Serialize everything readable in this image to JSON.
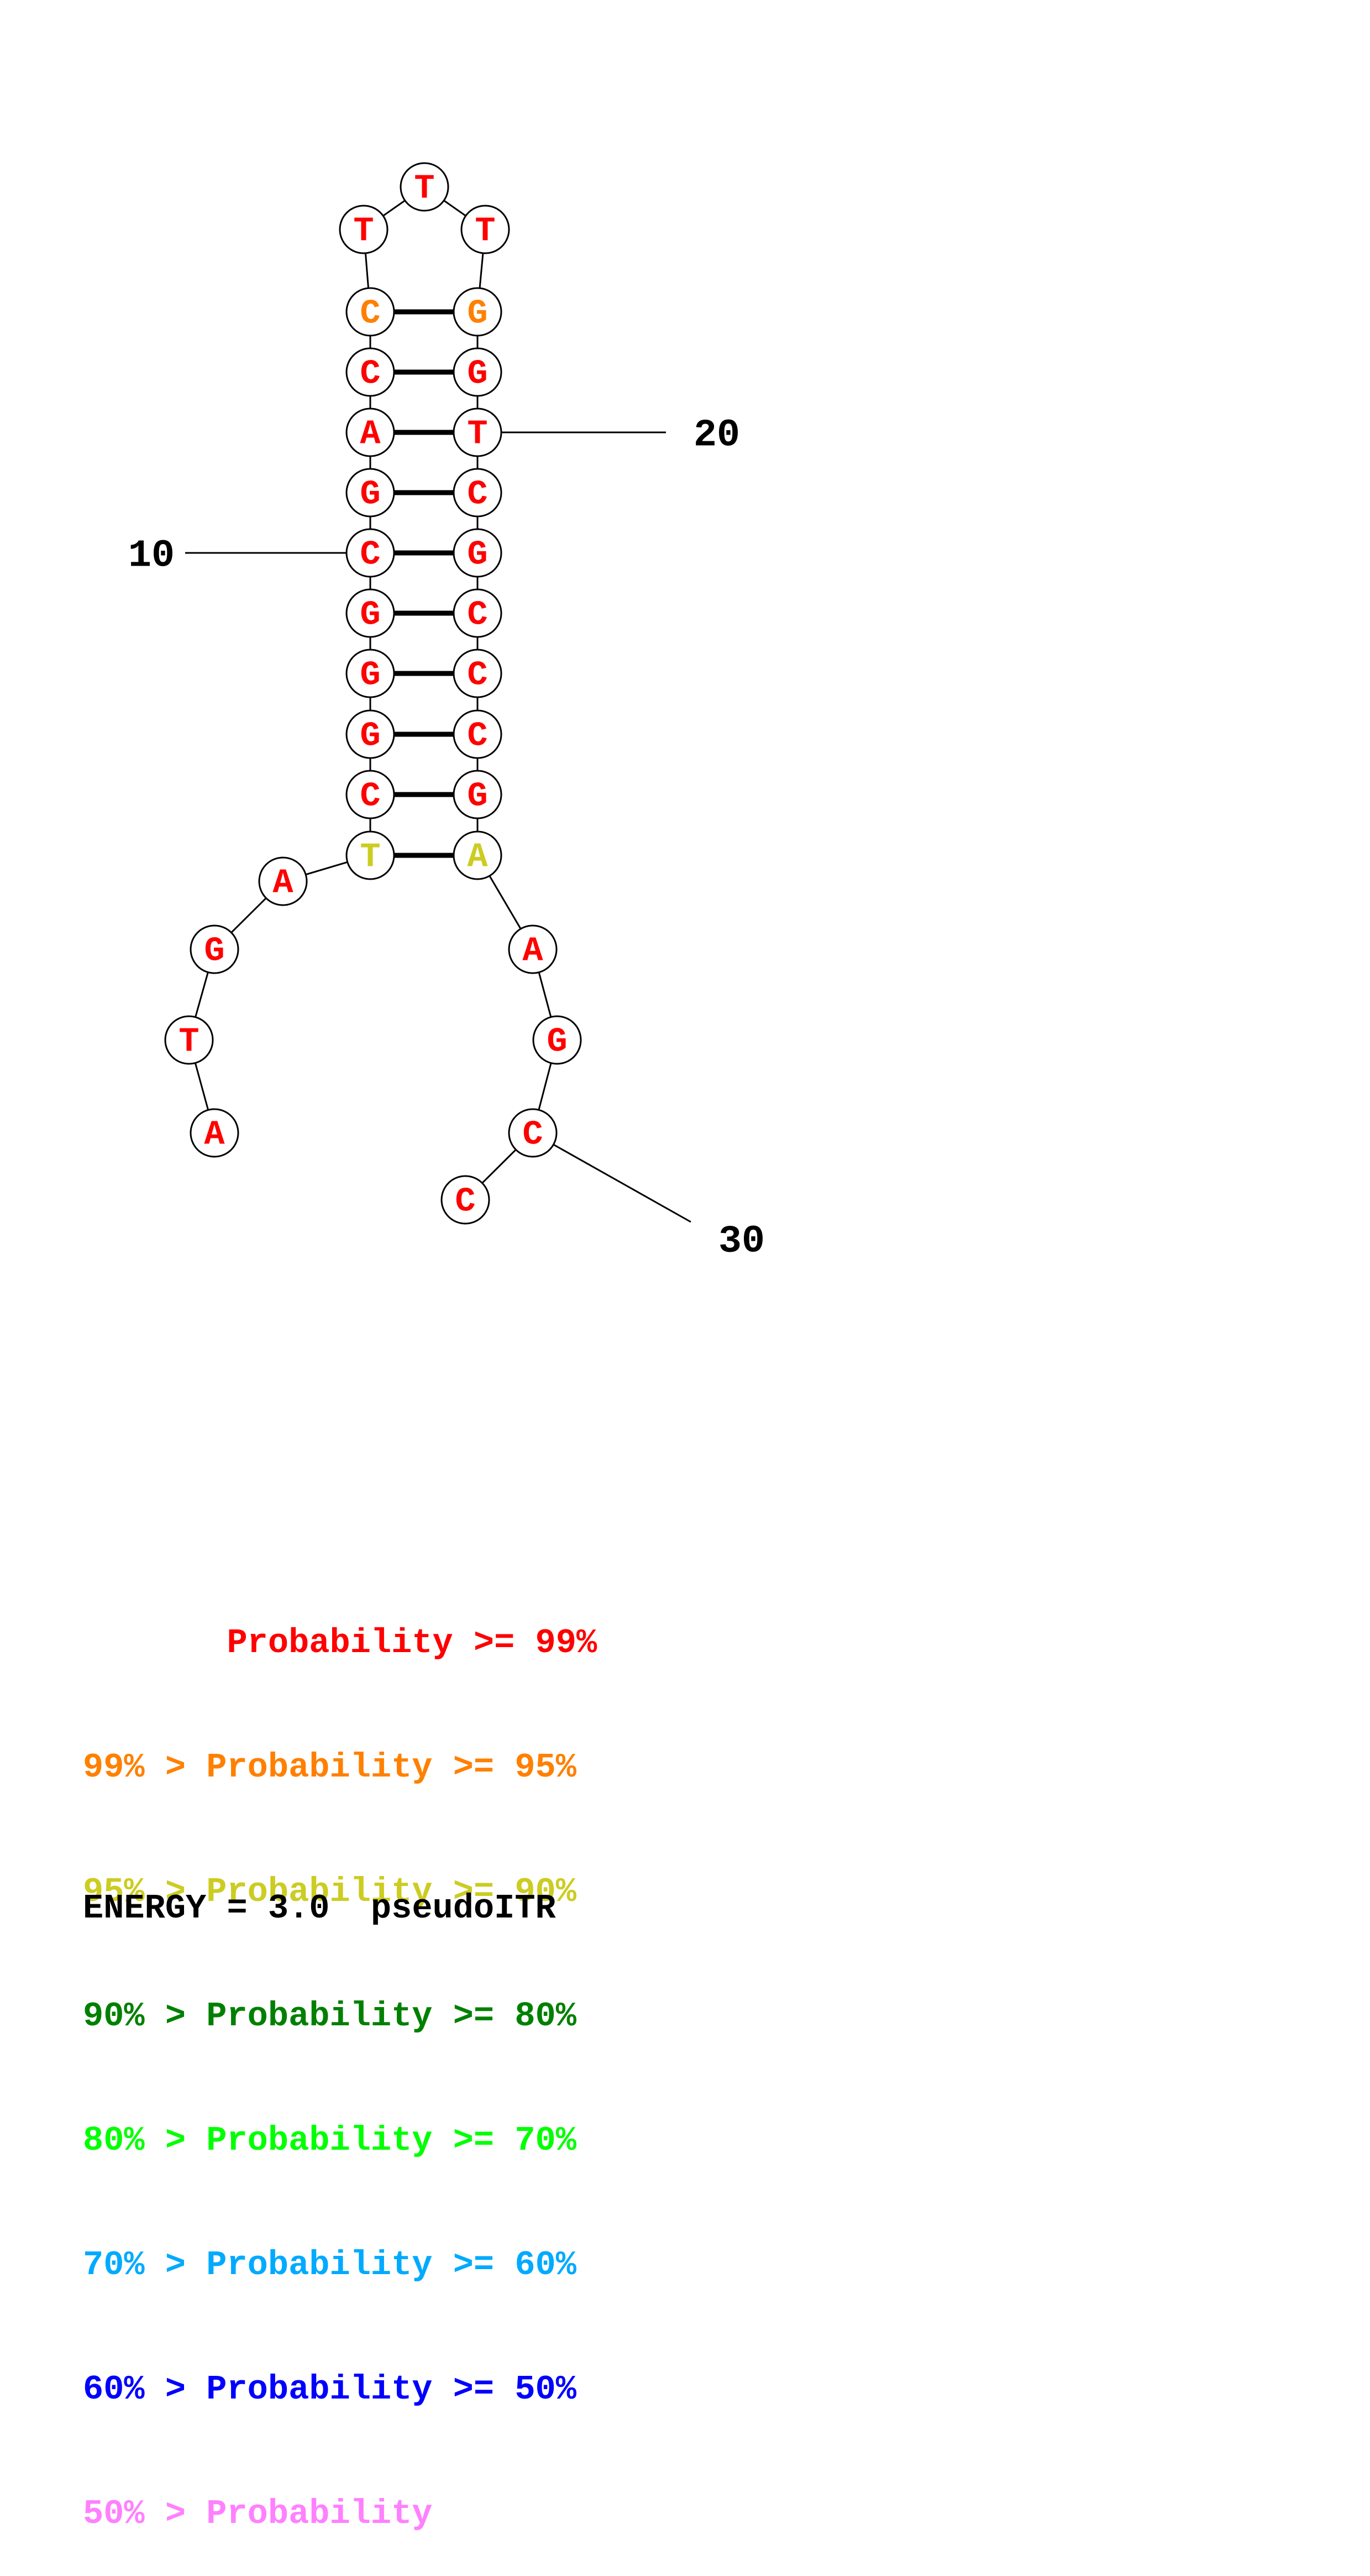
{
  "palette": {
    "red": "#ff0000",
    "orange": "#ff8000",
    "yellow": "#cccc22",
    "darkgreen": "#008000",
    "green": "#00ff00",
    "cyan": "#00aaff",
    "blue": "#0000ff",
    "pink": "#ff80ff",
    "black": "#000000"
  },
  "nucleotides": [
    {
      "n": 1,
      "base": "A",
      "color": "red"
    },
    {
      "n": 2,
      "base": "T",
      "color": "red"
    },
    {
      "n": 3,
      "base": "G",
      "color": "red"
    },
    {
      "n": 4,
      "base": "A",
      "color": "red"
    },
    {
      "n": 5,
      "base": "T",
      "color": "yellow"
    },
    {
      "n": 6,
      "base": "C",
      "color": "red"
    },
    {
      "n": 7,
      "base": "G",
      "color": "red"
    },
    {
      "n": 8,
      "base": "G",
      "color": "red"
    },
    {
      "n": 9,
      "base": "G",
      "color": "red"
    },
    {
      "n": 10,
      "base": "C",
      "color": "red"
    },
    {
      "n": 11,
      "base": "G",
      "color": "red"
    },
    {
      "n": 12,
      "base": "A",
      "color": "red"
    },
    {
      "n": 13,
      "base": "C",
      "color": "red"
    },
    {
      "n": 14,
      "base": "C",
      "color": "orange"
    },
    {
      "n": 15,
      "base": "T",
      "color": "red"
    },
    {
      "n": 16,
      "base": "T",
      "color": "red"
    },
    {
      "n": 17,
      "base": "T",
      "color": "red"
    },
    {
      "n": 18,
      "base": "G",
      "color": "orange"
    },
    {
      "n": 19,
      "base": "G",
      "color": "red"
    },
    {
      "n": 20,
      "base": "T",
      "color": "red"
    },
    {
      "n": 21,
      "base": "C",
      "color": "red"
    },
    {
      "n": 22,
      "base": "G",
      "color": "red"
    },
    {
      "n": 23,
      "base": "C",
      "color": "red"
    },
    {
      "n": 24,
      "base": "C",
      "color": "red"
    },
    {
      "n": 25,
      "base": "C",
      "color": "red"
    },
    {
      "n": 26,
      "base": "G",
      "color": "red"
    },
    {
      "n": 27,
      "base": "A",
      "color": "yellow"
    },
    {
      "n": 28,
      "base": "A",
      "color": "red"
    },
    {
      "n": 29,
      "base": "G",
      "color": "red"
    },
    {
      "n": 30,
      "base": "C",
      "color": "red"
    },
    {
      "n": 31,
      "base": "C",
      "color": "red"
    }
  ],
  "pairs": [
    [
      5,
      27
    ],
    [
      6,
      26
    ],
    [
      7,
      25
    ],
    [
      8,
      24
    ],
    [
      9,
      23
    ],
    [
      10,
      22
    ],
    [
      11,
      21
    ],
    [
      12,
      20
    ],
    [
      13,
      19
    ],
    [
      14,
      18
    ]
  ],
  "position_markers": [
    {
      "n": 10,
      "label": "10"
    },
    {
      "n": 20,
      "label": "20"
    },
    {
      "n": 30,
      "label": "30"
    }
  ],
  "legend": [
    {
      "prefix": "       ",
      "text": "Probability >= 99%",
      "color": "red"
    },
    {
      "prefix": "99% > ",
      "text": "Probability >= 95%",
      "color": "orange"
    },
    {
      "prefix": "95% > ",
      "text": "Probability >= 90%",
      "color": "yellow"
    },
    {
      "prefix": "90% > ",
      "text": "Probability >= 80%",
      "color": "darkgreen"
    },
    {
      "prefix": "80% > ",
      "text": "Probability >= 70%",
      "color": "green"
    },
    {
      "prefix": "70% > ",
      "text": "Probability >= 60%",
      "color": "cyan"
    },
    {
      "prefix": "60% > ",
      "text": "Probability >= 50%",
      "color": "blue"
    },
    {
      "prefix": "50% > ",
      "text": "Probability",
      "color": "pink"
    }
  ],
  "energy": {
    "label": "ENERGY = 3.0",
    "name": "pseudoITR"
  }
}
